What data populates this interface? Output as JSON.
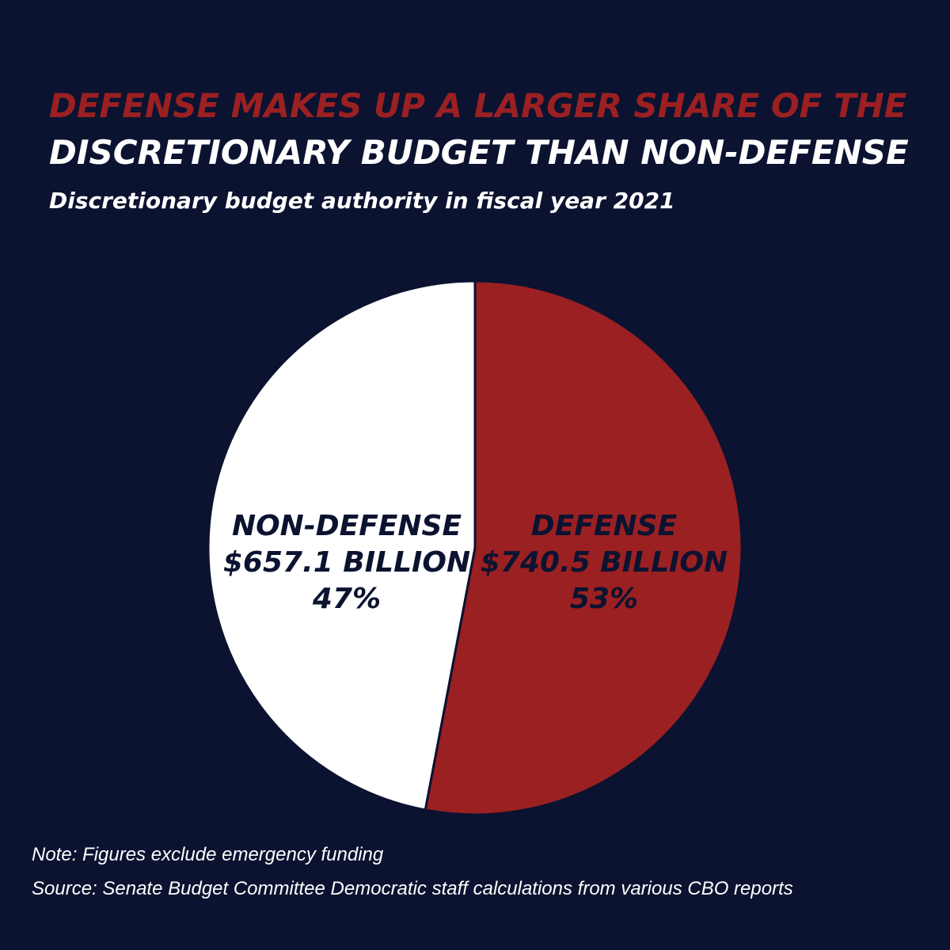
{
  "title": {
    "line1": "DEFENSE MAKES UP A LARGER SHARE OF THE",
    "line2": "DISCRETIONARY BUDGET THAN NON-DEFENSE"
  },
  "subtitle": "Discretionary budget authority in fiscal year 2021",
  "chart_data": {
    "type": "pie",
    "title": "DEFENSE MAKES UP A LARGER SHARE OF THE DISCRETIONARY BUDGET THAN NON-DEFENSE",
    "subtitle": "Discretionary budget authority in fiscal year 2021",
    "unit": "billion USD",
    "slices": [
      {
        "name": "DEFENSE",
        "value": 740.5,
        "value_label": "$740.5 BILLION",
        "percent": 53,
        "percent_label": "53%",
        "color": "#9b2022"
      },
      {
        "name": "NON-DEFENSE",
        "value": 657.1,
        "value_label": "$657.1 BILLION",
        "percent": 47,
        "percent_label": "47%",
        "color": "#ffffff"
      }
    ],
    "start": "12 o'clock",
    "direction": "clockwise"
  },
  "footer": {
    "note": "Note: Figures exclude emergency funding",
    "source": "Source: Senate Budget Committee Democratic staff calculations from various CBO reports"
  },
  "colors": {
    "background": "#0b1330",
    "accent_red": "#9b2022",
    "text_white": "#ffffff",
    "label_dark": "#0b1330"
  }
}
